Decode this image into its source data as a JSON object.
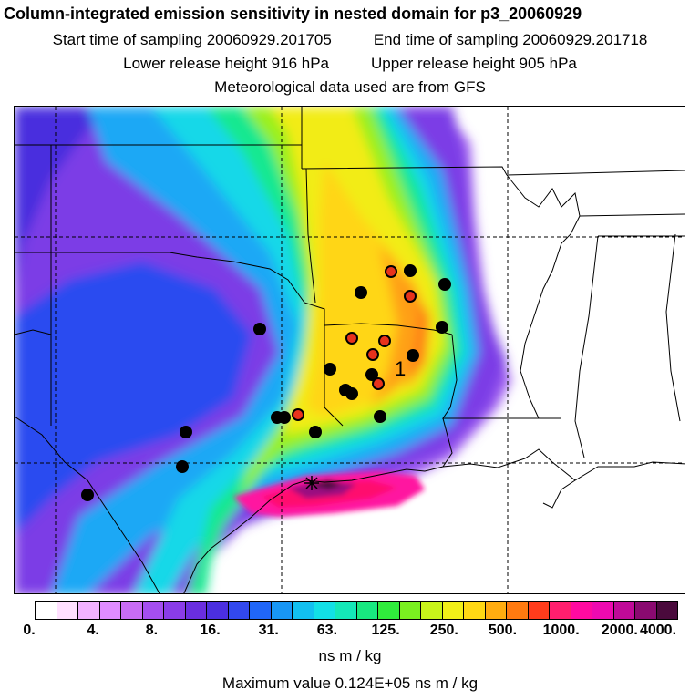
{
  "header": {
    "title": "Column-integrated emission sensitivity in nested domain for p3_20060929",
    "start_time": "Start time of sampling 20060929.201705",
    "end_time": "End time of sampling 20060929.201718",
    "lower_release": "Lower release height  916 hPa",
    "upper_release": "Upper release height  905 hPa",
    "met_data": "Meteorological data used are from GFS"
  },
  "map": {
    "site_label": "1"
  },
  "colorbar": {
    "colors": [
      "#ffffff",
      "#ffe0ff",
      "#f2b2ff",
      "#e08cff",
      "#c86cf5",
      "#a54ef0",
      "#8a3ce8",
      "#6a2ee0",
      "#4b2fe0",
      "#3248ee",
      "#2066f8",
      "#1896f5",
      "#12c0f0",
      "#12e0e6",
      "#14e8b8",
      "#18e880",
      "#30ec3c",
      "#7af020",
      "#c8f41a",
      "#f2f018",
      "#ffd814",
      "#ffac10",
      "#ff7a10",
      "#ff3c1c",
      "#ff1e6e",
      "#ff0aa0",
      "#ee0ab0",
      "#c00a98",
      "#8a0a70",
      "#4a0a3c"
    ],
    "tick_labels": [
      "0.",
      "4.",
      "8.",
      "16.",
      "31.",
      "63.",
      "125.",
      "250.",
      "500.",
      "1000.",
      "2000.",
      "4000."
    ],
    "units": "ns m / kg",
    "max_value": "Maximum value  0.124E+05 ns m / kg"
  }
}
